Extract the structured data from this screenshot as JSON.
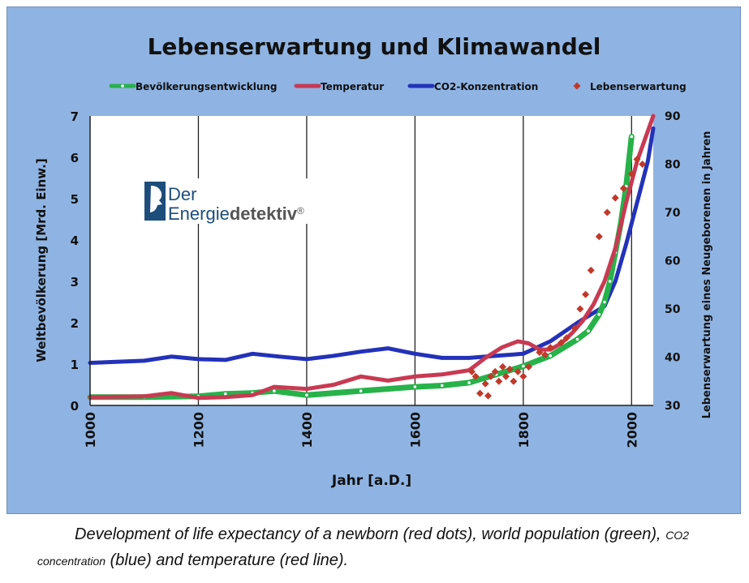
{
  "chart_data": {
    "type": "line",
    "title": "Lebenserwartung und Klimawandel",
    "xlabel": "Jahr [a.D.]",
    "ylabel": "Weltbevölkerung [Mrd. Einw.]",
    "y2label": "Lebenserwartung eines Neugeborenen in Jahren",
    "xlim": [
      1000,
      2040
    ],
    "ylim": [
      0,
      7
    ],
    "y2lim": [
      30,
      90
    ],
    "xticks": [
      "1000",
      "1200",
      "1400",
      "1600",
      "1800",
      "2000"
    ],
    "yticks": [
      "0",
      "1",
      "2",
      "3",
      "4",
      "5",
      "6",
      "7"
    ],
    "y2ticks": [
      "30",
      "40",
      "50",
      "60",
      "70",
      "80",
      "90"
    ],
    "grid": "vertical",
    "legend_position": "top",
    "series": [
      {
        "name": "Bevölkerungsentwicklung",
        "color": "#27b24a",
        "axis": "left",
        "x": [
          1000,
          1100,
          1200,
          1250,
          1300,
          1340,
          1400,
          1500,
          1600,
          1650,
          1700,
          1750,
          1800,
          1850,
          1900,
          1920,
          1940,
          1950,
          1960,
          1970,
          1980,
          1990,
          2000
        ],
        "values": [
          0.2,
          0.2,
          0.22,
          0.28,
          0.3,
          0.35,
          0.25,
          0.35,
          0.45,
          0.48,
          0.55,
          0.75,
          0.95,
          1.2,
          1.6,
          1.8,
          2.2,
          2.5,
          3.0,
          3.7,
          4.4,
          5.3,
          6.5
        ]
      },
      {
        "name": "Temperatur",
        "color": "#c83a52",
        "axis": "left",
        "x": [
          1000,
          1100,
          1150,
          1200,
          1250,
          1300,
          1340,
          1400,
          1450,
          1500,
          1550,
          1600,
          1650,
          1700,
          1730,
          1760,
          1790,
          1810,
          1830,
          1850,
          1870,
          1890,
          1910,
          1930,
          1950,
          1970,
          1990,
          2010,
          2040
        ],
        "values": [
          0.2,
          0.22,
          0.3,
          0.18,
          0.2,
          0.25,
          0.45,
          0.4,
          0.5,
          0.7,
          0.6,
          0.7,
          0.75,
          0.85,
          1.15,
          1.4,
          1.55,
          1.5,
          1.35,
          1.35,
          1.5,
          1.75,
          2.05,
          2.45,
          3.0,
          3.8,
          4.9,
          5.9,
          7.0
        ]
      },
      {
        "name": "CO2-Konzentration",
        "color": "#2332b8",
        "axis": "left",
        "x": [
          1000,
          1100,
          1150,
          1200,
          1250,
          1300,
          1350,
          1400,
          1450,
          1500,
          1550,
          1600,
          1650,
          1700,
          1750,
          1800,
          1850,
          1900,
          1950,
          1970,
          1990,
          2010,
          2030,
          2040
        ],
        "values": [
          1.03,
          1.08,
          1.18,
          1.12,
          1.1,
          1.25,
          1.18,
          1.12,
          1.2,
          1.3,
          1.38,
          1.25,
          1.15,
          1.15,
          1.2,
          1.25,
          1.55,
          2.0,
          2.4,
          3.0,
          3.9,
          4.9,
          5.9,
          6.7
        ]
      },
      {
        "name": "Lebenserwartung",
        "color": "#c0392b",
        "axis": "right",
        "markers_only": true,
        "x": [
          1705,
          1712,
          1720,
          1730,
          1735,
          1740,
          1748,
          1755,
          1762,
          1768,
          1775,
          1782,
          1790,
          1800,
          1810,
          1830,
          1840,
          1850,
          1870,
          1880,
          1895,
          1905,
          1915,
          1925,
          1940,
          1955,
          1970,
          1985,
          2000,
          2010,
          2020
        ],
        "values": [
          37,
          36,
          32.5,
          34.5,
          32,
          36,
          37,
          35,
          38,
          36,
          37.5,
          35,
          37,
          36,
          38,
          41,
          40.5,
          42,
          43,
          44,
          46,
          50,
          53,
          58,
          65,
          70,
          73,
          75,
          78,
          81,
          80
        ]
      }
    ]
  },
  "watermark": {
    "word1": "Der",
    "word2_plain": "Energie",
    "word2_bold": "detektiv",
    "mark": "®"
  },
  "caption": {
    "part1": "Development of life expectancy of a newborn (red dots), world population (green), ",
    "small": "CO2 concentration",
    "part2": " (blue) and temperature (red line)."
  }
}
